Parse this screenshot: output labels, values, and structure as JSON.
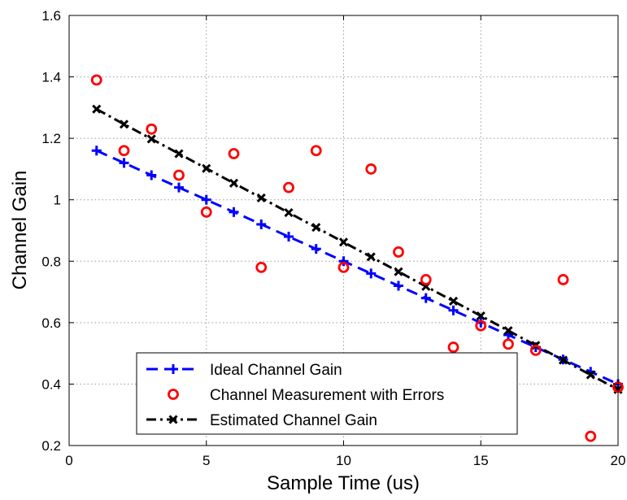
{
  "chart_data": {
    "type": "line",
    "title": "",
    "xlabel": "Sample Time (us)",
    "ylabel": "Channel Gain",
    "xlim": [
      0,
      20
    ],
    "ylim": [
      0.2,
      1.6
    ],
    "xticks": [
      0,
      5,
      10,
      15,
      20
    ],
    "yticks": [
      0.2,
      0.4,
      0.6,
      0.8,
      1,
      1.2,
      1.4,
      1.6
    ],
    "xtick_labels": [
      "0",
      "5",
      "10",
      "15",
      "20"
    ],
    "ytick_labels": [
      "0.2",
      "0.4",
      "0.6",
      "0.8",
      "1",
      "1.2",
      "1.4",
      "1.6"
    ],
    "grid": true,
    "legend_position": "bottom-center",
    "series": [
      {
        "name": "Ideal Channel Gain",
        "style": "dashed",
        "marker": "plus",
        "color": "#0000ff",
        "x": [
          1,
          2,
          3,
          4,
          5,
          6,
          7,
          8,
          9,
          10,
          11,
          12,
          13,
          14,
          15,
          16,
          17,
          18,
          19,
          20
        ],
        "y": [
          1.16,
          1.12,
          1.08,
          1.04,
          1.0,
          0.96,
          0.92,
          0.88,
          0.84,
          0.8,
          0.76,
          0.72,
          0.68,
          0.64,
          0.6,
          0.56,
          0.52,
          0.48,
          0.44,
          0.4
        ]
      },
      {
        "name": "Channel Measurement with Errors",
        "style": "none",
        "marker": "circle",
        "color": "#ff0000",
        "x": [
          1,
          2,
          3,
          4,
          5,
          6,
          7,
          8,
          9,
          10,
          11,
          12,
          13,
          14,
          15,
          16,
          17,
          18,
          19,
          20
        ],
        "y": [
          1.39,
          1.16,
          1.23,
          1.08,
          0.96,
          1.15,
          0.78,
          1.04,
          1.16,
          0.78,
          1.1,
          0.83,
          0.74,
          0.52,
          0.59,
          0.53,
          0.51,
          0.74,
          0.23,
          0.39
        ]
      },
      {
        "name": "Estimated Channel Gain",
        "style": "dashdot",
        "marker": "x",
        "color": "#000000",
        "x": [
          1,
          2,
          3,
          4,
          5,
          6,
          7,
          8,
          9,
          10,
          11,
          12,
          13,
          14,
          15,
          16,
          17,
          18,
          19,
          20
        ],
        "y": [
          1.295,
          1.246,
          1.198,
          1.15,
          1.102,
          1.054,
          1.006,
          0.958,
          0.91,
          0.862,
          0.814,
          0.766,
          0.718,
          0.67,
          0.622,
          0.574,
          0.526,
          0.478,
          0.43,
          0.382
        ]
      }
    ]
  }
}
